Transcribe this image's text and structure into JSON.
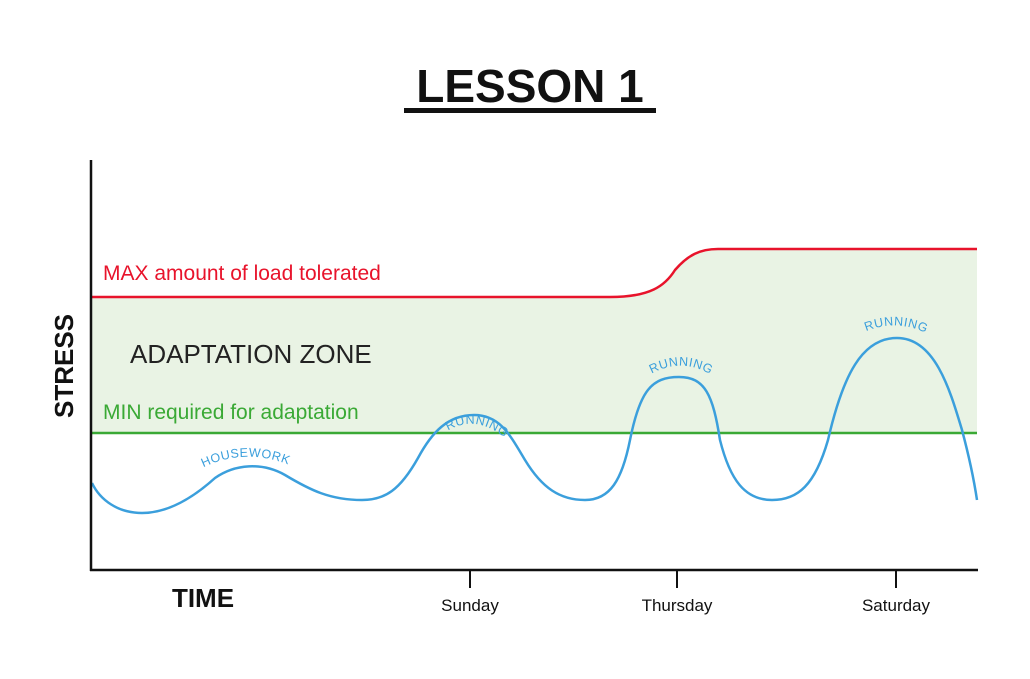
{
  "title": "LESSON 1",
  "y_axis_title": "STRESS",
  "x_axis_title": "TIME",
  "ticks": [
    "Sunday",
    "Thursday",
    "Saturday"
  ],
  "zone_label": "ADAPTATION ZONE",
  "max_line_label": "MAX amount of load tolerated",
  "min_line_label": "MIN required for adaptation",
  "curve_labels": {
    "housework": "HOUSEWORK",
    "running_sunday": "RUNNING",
    "running_thursday": "RUNNING",
    "running_saturday": "RUNNING"
  },
  "colors": {
    "max_line": "#e8132b",
    "min_line": "#3aa935",
    "zone_fill": "#e9f3e4",
    "stress_curve": "#3b9fdc",
    "axis": "#111111"
  }
}
